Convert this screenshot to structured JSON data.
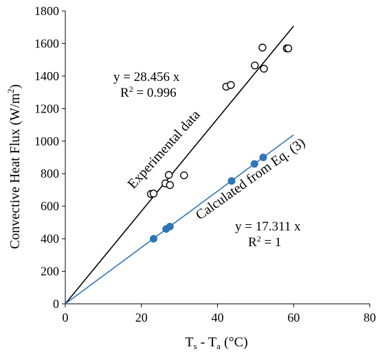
{
  "chart_data": {
    "type": "scatter",
    "xlabel": "T_s - T_a (°C)",
    "xlabel_parts": {
      "t1": "T",
      "sub1": "s",
      "mid": " - T",
      "sub2": "a",
      "unit": " (°C)"
    },
    "ylabel": "Convective Heat Flux (W/m²)",
    "ylabel_parts": {
      "main": "Convective  Heat Flux (W/m",
      "sup": "2",
      "close": ")"
    },
    "xlim": [
      0,
      80
    ],
    "ylim": [
      0,
      1800
    ],
    "xticks": [
      0,
      20,
      40,
      60,
      80
    ],
    "yticks": [
      0,
      200,
      400,
      600,
      800,
      1000,
      1200,
      1400,
      1600,
      1800
    ],
    "grid": false,
    "series": [
      {
        "name": "Experimental data",
        "marker": "open-circle",
        "color": "#000000",
        "points": [
          [
            22.5,
            675
          ],
          [
            23.2,
            678
          ],
          [
            26.3,
            740
          ],
          [
            27.2,
            792
          ],
          [
            27.5,
            730
          ],
          [
            31.2,
            790
          ],
          [
            42.3,
            1335
          ],
          [
            43.5,
            1345
          ],
          [
            49.8,
            1465
          ],
          [
            51.8,
            1575
          ],
          [
            52.2,
            1445
          ],
          [
            58.2,
            1570
          ],
          [
            58.6,
            1570
          ]
        ]
      },
      {
        "name": "Calculated from Eq. (3)",
        "marker": "filled-circle",
        "color": "#2E75B6",
        "points": [
          [
            23.2,
            400
          ],
          [
            26.5,
            460
          ],
          [
            27.5,
            475
          ],
          [
            43.7,
            755
          ],
          [
            49.7,
            860
          ],
          [
            52.0,
            900
          ]
        ]
      }
    ],
    "trendlines": [
      {
        "series": "Experimental data",
        "slope": 28.456,
        "x_range": [
          0,
          60
        ],
        "color": "#000000",
        "equation": "y = 28.456 x",
        "r2_label": "R",
        "r2_sup": "2",
        "r2_value": " = 0.996"
      },
      {
        "series": "Calculated from Eq. (3)",
        "slope": 17.311,
        "x_range": [
          0,
          60
        ],
        "color": "#2E75B6",
        "equation": "y = 17.311 x",
        "r2_label": "R",
        "r2_sup": "2",
        "r2_value": " = 1"
      }
    ],
    "annotations": {
      "experimental": "Experimental  data",
      "calculated": "Calculated  from Eq. (3)"
    }
  }
}
